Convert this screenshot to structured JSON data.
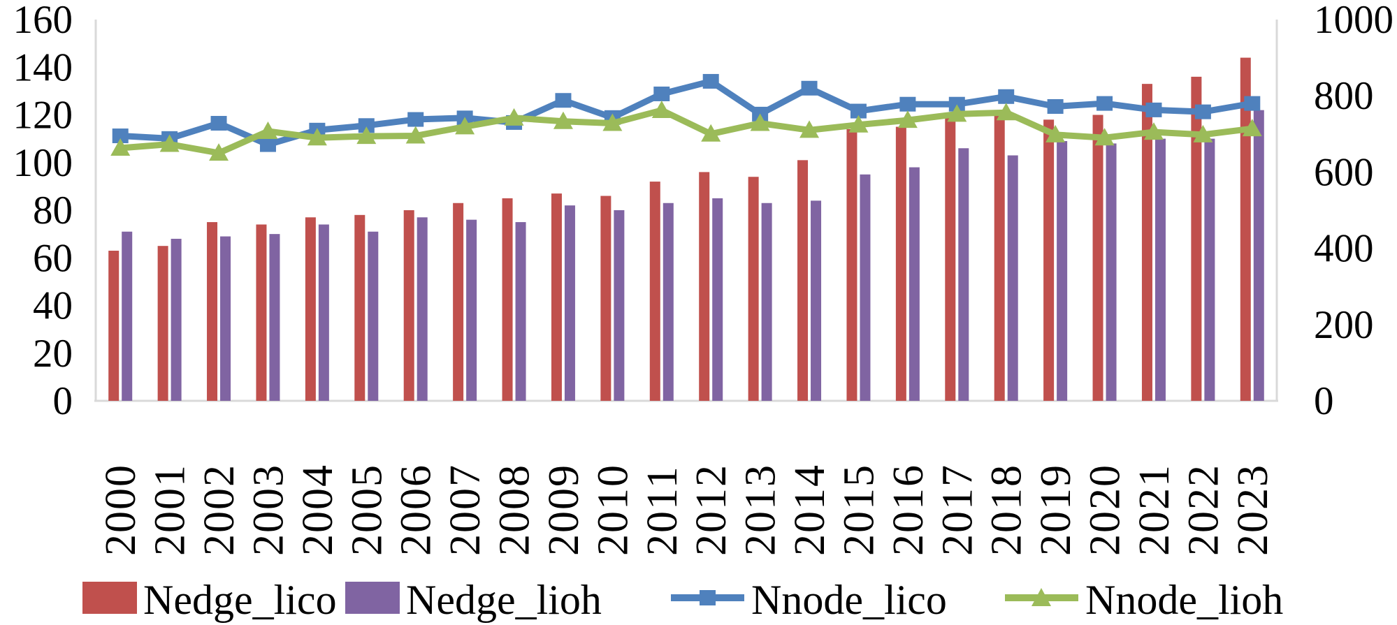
{
  "figure": {
    "background": "#ffffff",
    "axis_line_color": "#d9d9d9",
    "text_color": "#000000"
  },
  "chart_data": {
    "type": "combo",
    "title": "",
    "xlabel": "",
    "ylabel_left": "",
    "ylabel_right": "",
    "grid": false,
    "legend_position": "bottom",
    "categories": [
      "2000",
      "2001",
      "2002",
      "2003",
      "2004",
      "2005",
      "2006",
      "2007",
      "2008",
      "2009",
      "2010",
      "2011",
      "2012",
      "2013",
      "2014",
      "2015",
      "2016",
      "2017",
      "2018",
      "2019",
      "2020",
      "2021",
      "2022",
      "2023"
    ],
    "series": [
      {
        "name": "Nedge_lico",
        "type": "bar",
        "axis": "left",
        "color": "#C0504D",
        "values": [
          63,
          65,
          75,
          74,
          77,
          78,
          80,
          83,
          85,
          87,
          86,
          92,
          96,
          94,
          101,
          114,
          115,
          119,
          120,
          118,
          120,
          133,
          136,
          144
        ]
      },
      {
        "name": "Nedge_lioh",
        "type": "bar",
        "axis": "left",
        "color": "#8064A2",
        "values": [
          71,
          68,
          69,
          70,
          74,
          71,
          77,
          76,
          75,
          82,
          80,
          83,
          85,
          83,
          84,
          95,
          98,
          106,
          103,
          109,
          108,
          110,
          110,
          122
        ]
      },
      {
        "name": "Nnode_lico",
        "type": "line",
        "marker": "square",
        "axis": "right",
        "color": "#4F81BD",
        "values": [
          695,
          688,
          728,
          672,
          710,
          722,
          738,
          742,
          730,
          788,
          743,
          805,
          838,
          752,
          820,
          760,
          778,
          778,
          798,
          772,
          780,
          763,
          758,
          780
        ]
      },
      {
        "name": "Nnode_lioh",
        "type": "line",
        "marker": "triangle",
        "axis": "right",
        "color": "#9BBB59",
        "values": [
          663,
          673,
          650,
          707,
          690,
          694,
          695,
          719,
          742,
          733,
          728,
          762,
          700,
          728,
          710,
          724,
          736,
          752,
          756,
          698,
          690,
          705,
          698,
          714
        ]
      }
    ],
    "left_axis": {
      "min": 0,
      "max": 160,
      "step": 20,
      "ticks": [
        "0",
        "20",
        "40",
        "60",
        "80",
        "100",
        "120",
        "140",
        "160"
      ]
    },
    "right_axis": {
      "min": 0,
      "max": 1000,
      "step": 200,
      "ticks": [
        "0",
        "200",
        "400",
        "600",
        "800",
        "1000"
      ]
    }
  }
}
